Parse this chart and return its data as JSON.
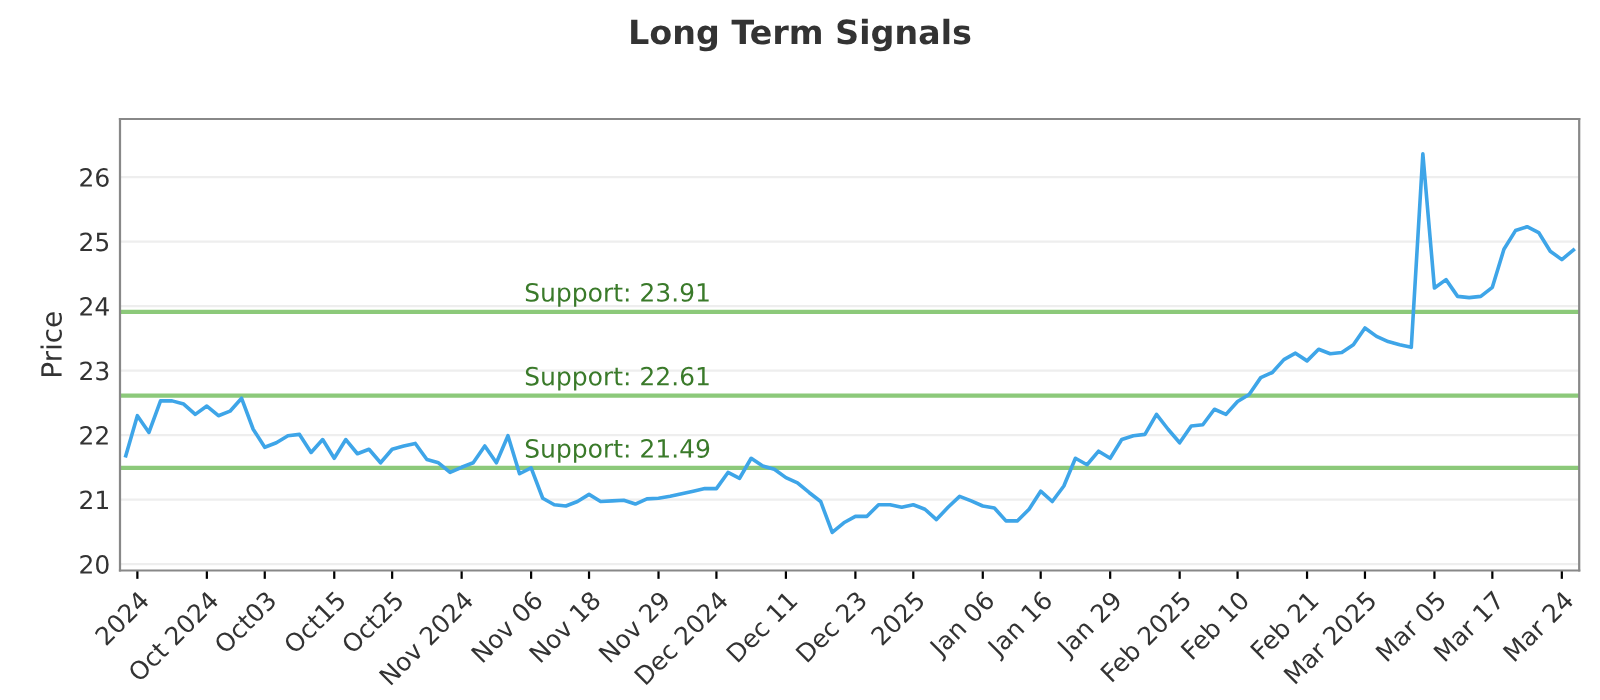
{
  "chart_data": {
    "type": "line",
    "title": "Long Term Signals",
    "ylabel": "Price",
    "categories": [
      null,
      "2024",
      null,
      null,
      null,
      null,
      null,
      "Oct 2024",
      null,
      null,
      null,
      null,
      "Oct03",
      null,
      null,
      null,
      null,
      null,
      "Oct15",
      null,
      null,
      null,
      null,
      "Oct25",
      null,
      null,
      null,
      null,
      null,
      "Nov 2024",
      null,
      null,
      null,
      null,
      null,
      "Nov 06",
      null,
      null,
      null,
      null,
      "Nov 18",
      null,
      null,
      null,
      null,
      null,
      "Nov 29",
      null,
      null,
      null,
      null,
      "Dec 2024",
      null,
      null,
      null,
      null,
      null,
      "Dec 11",
      null,
      null,
      null,
      null,
      null,
      "Dec 23",
      null,
      null,
      null,
      null,
      "2025",
      null,
      null,
      null,
      null,
      null,
      "Jan 06",
      null,
      null,
      null,
      null,
      "Jan 16",
      null,
      null,
      null,
      null,
      null,
      "Jan 29",
      null,
      null,
      null,
      null,
      null,
      "Feb 2025",
      null,
      null,
      null,
      null,
      "Feb 10",
      null,
      null,
      null,
      null,
      null,
      "Feb 21",
      null,
      null,
      null,
      null,
      "Mar 2025",
      null,
      null,
      null,
      null,
      null,
      "Mar 05",
      null,
      null,
      null,
      null,
      "Mar 17",
      null,
      null,
      null,
      null,
      null,
      "Mar 24",
      null
    ],
    "series": [
      {
        "color": "#3ea5e8",
        "values": [
          21.68,
          22.3,
          22.04,
          22.53,
          22.53,
          22.48,
          22.32,
          22.45,
          22.3,
          22.37,
          22.57,
          22.09,
          21.81,
          21.88,
          21.99,
          22.01,
          21.73,
          21.93,
          21.64,
          21.93,
          21.71,
          21.78,
          21.57,
          21.78,
          21.83,
          21.87,
          21.62,
          21.57,
          21.42,
          21.5,
          21.57,
          21.83,
          21.57,
          21.99,
          21.4,
          21.49,
          21.02,
          20.92,
          20.9,
          20.97,
          21.08,
          20.97,
          20.98,
          20.99,
          20.93,
          21.01,
          21.02,
          21.05,
          21.09,
          21.13,
          21.17,
          21.17,
          21.42,
          21.33,
          21.64,
          21.52,
          21.47,
          21.34,
          21.26,
          21.11,
          20.97,
          20.49,
          20.64,
          20.74,
          20.74,
          20.92,
          20.92,
          20.88,
          20.92,
          20.85,
          20.69,
          20.88,
          21.05,
          20.98,
          20.9,
          20.87,
          20.67,
          20.67,
          20.85,
          21.13,
          20.97,
          21.21,
          21.64,
          21.54,
          21.75,
          21.64,
          21.93,
          21.99,
          22.01,
          22.32,
          22.09,
          21.88,
          22.14,
          22.16,
          22.4,
          22.32,
          22.52,
          22.63,
          22.89,
          22.97,
          23.17,
          23.27,
          23.15,
          23.33,
          23.26,
          23.28,
          23.4,
          23.66,
          23.53,
          23.45,
          23.4,
          23.36,
          26.36,
          24.28,
          24.41,
          24.15,
          24.13,
          24.15,
          24.29,
          24.88,
          25.17,
          25.23,
          25.14,
          24.85,
          24.72,
          24.87
        ]
      }
    ],
    "ylim": [
      19.9,
      26.9
    ],
    "yticks": [
      20,
      21,
      22,
      23,
      24,
      25,
      26
    ],
    "grid": "y",
    "marker": "none",
    "line_style": "solid",
    "ref_lines": [
      {
        "axis": "y",
        "value": 23.91,
        "label": "Support: 23.91",
        "color": "#8cc97a"
      },
      {
        "axis": "y",
        "value": 22.61,
        "label": "Support: 22.61",
        "color": "#8cc97a"
      },
      {
        "axis": "y",
        "value": 21.49,
        "label": "Support: 21.49",
        "color": "#8cc97a"
      }
    ]
  }
}
